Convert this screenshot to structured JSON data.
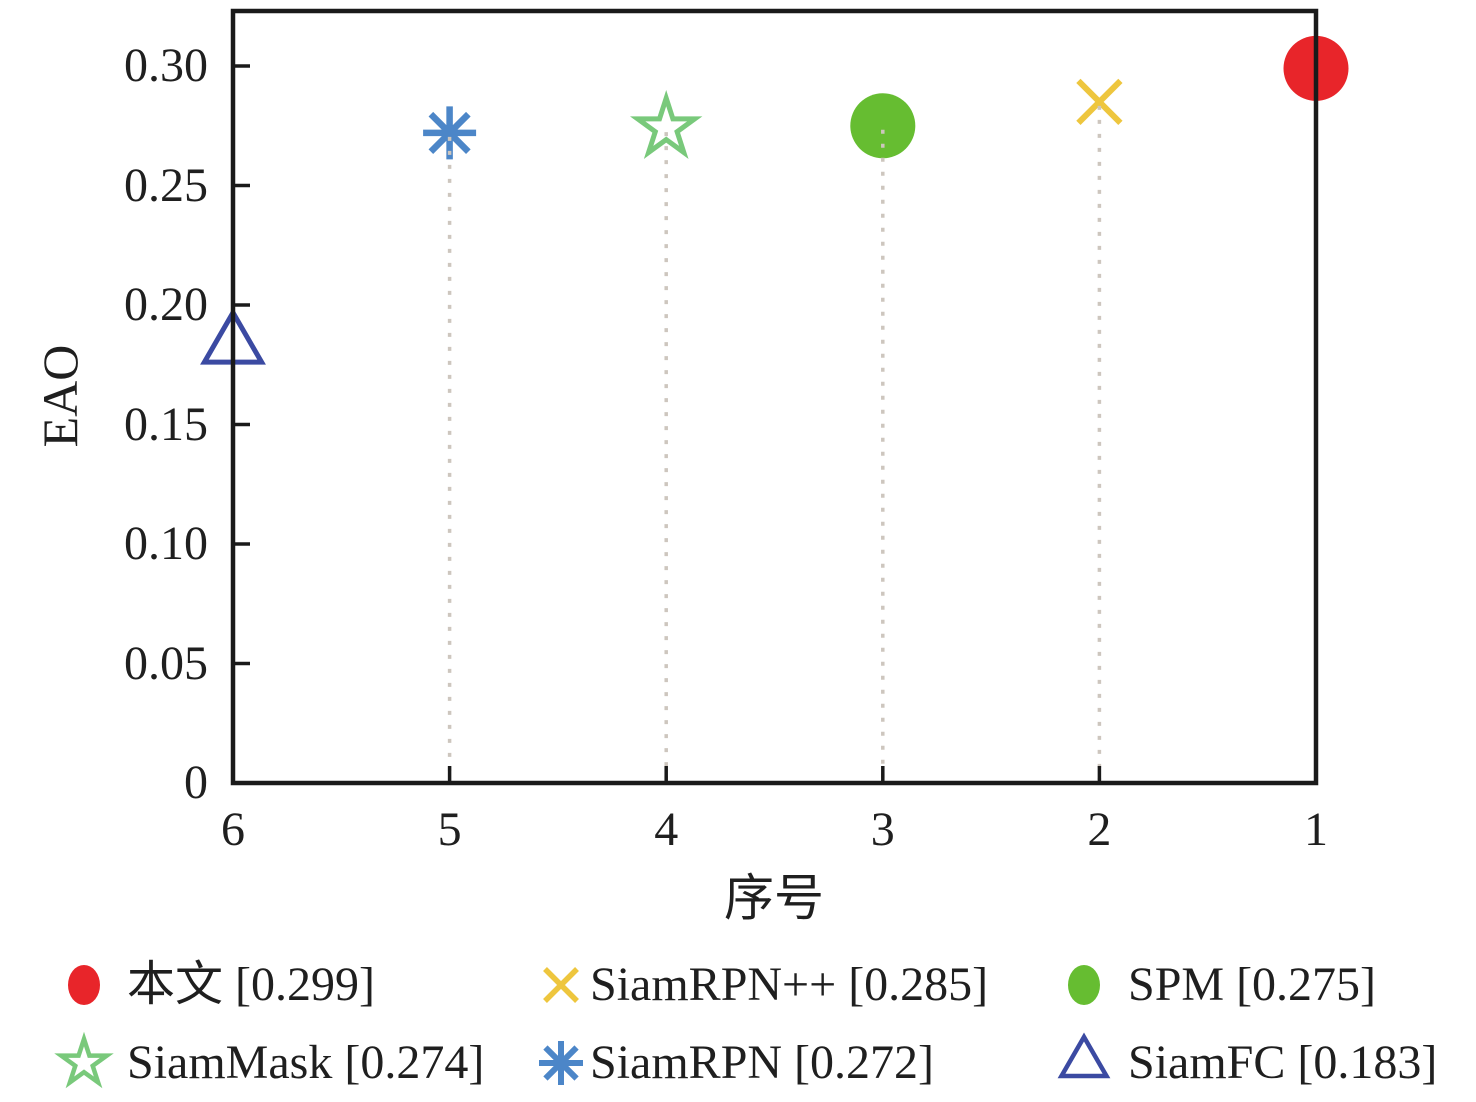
{
  "chart_data": {
    "type": "scatter",
    "title": "",
    "xlabel": "序号",
    "ylabel": "EAO",
    "x_tick_labels": [
      "6",
      "5",
      "4",
      "3",
      "2",
      "1"
    ],
    "y_tick_labels": [
      "0",
      "0.05",
      "0.10",
      "0.15",
      "0.20",
      "0.25",
      "0.30"
    ],
    "x_range_left_to_right": [
      6,
      1
    ],
    "y_range": [
      0,
      0.32
    ],
    "grid": "vertical dotted droplines under markers at ranks 2-5",
    "legend_position": "bottom, 2 rows x 3 columns",
    "series": [
      {
        "name": "本文",
        "legend_label": "本文 [0.299]",
        "rank": 1,
        "eao": 0.299,
        "marker": "filled-circle",
        "color": "#e8252a"
      },
      {
        "name": "SiamRPN++",
        "legend_label": "SiamRPN++ [0.285]",
        "rank": 2,
        "eao": 0.285,
        "marker": "x-cross",
        "color": "#eec63e"
      },
      {
        "name": "SPM",
        "legend_label": "SPM [0.275]",
        "rank": 3,
        "eao": 0.275,
        "marker": "filled-circle",
        "color": "#66bd31"
      },
      {
        "name": "SiamMask",
        "legend_label": "SiamMask [0.274]",
        "rank": 4,
        "eao": 0.274,
        "marker": "open-star",
        "color": "#79c97b"
      },
      {
        "name": "SiamRPN",
        "legend_label": "SiamRPN [0.272]",
        "rank": 5,
        "eao": 0.272,
        "marker": "asterisk",
        "color": "#4c86c8"
      },
      {
        "name": "SiamFC",
        "legend_label": "SiamFC [0.183]",
        "rank": 6,
        "eao": 0.183,
        "marker": "open-triangle",
        "color": "#3b4aa2"
      }
    ]
  },
  "colors": {
    "background": "#ffffff",
    "axis": "#1a1a1a",
    "text": "#1f1f1f",
    "dropline": "#cdc6be"
  }
}
